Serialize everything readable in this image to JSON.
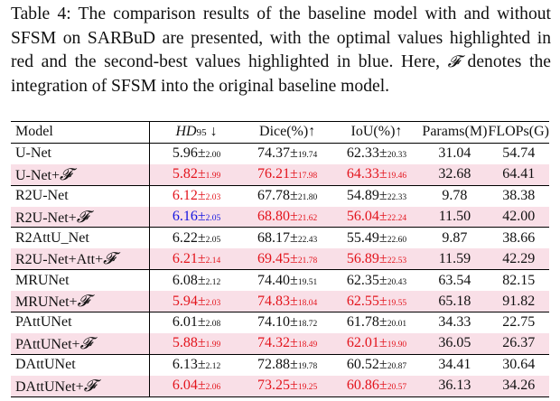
{
  "caption": {
    "part1": "Table 4: The comparison results of the baseline model with and without SFSM on SARBuD are presented, with the optimal values highlighted in red and the second-best values highlighted in blue. Here, ",
    "symbol": "𝓕",
    "part2": " denotes the integration of SFSM into the original baseline model."
  },
  "header": {
    "model": "Model",
    "hd": "HD",
    "hd_sub": "95",
    "hd_arrow": " ↓",
    "dice": "Dice(%)↑",
    "iou": "IoU(%)↑",
    "params": "Params(M)",
    "flops": "FLOPs(G)"
  },
  "groups": [
    {
      "rows": [
        {
          "model": "U-Net",
          "hd": "5.96",
          "hd_pm": "±",
          "hd_std": "2.00",
          "hd_color": "",
          "dice": "74.37",
          "dice_pm": "±",
          "dice_std": "19.74",
          "dice_color": "",
          "iou": "62.33",
          "iou_pm": "±",
          "iou_std": "20.33",
          "iou_color": "",
          "params": "31.04",
          "flops": "54.74",
          "highlight": false
        },
        {
          "model": "U-Net+",
          "suffix": "𝓕",
          "hd": "5.82",
          "hd_pm": "±",
          "hd_std": "1.99",
          "hd_color": "red",
          "dice": "76.21",
          "dice_pm": "±",
          "dice_std": "17.98",
          "dice_color": "red",
          "iou": "64.33",
          "iou_pm": "±",
          "iou_std": "19.46",
          "iou_color": "red",
          "params": "32.68",
          "flops": "64.41",
          "highlight": true
        }
      ]
    },
    {
      "rows": [
        {
          "model": "R2U-Net",
          "hd": "6.12",
          "hd_pm": "±",
          "hd_std": "2.03",
          "hd_color": "red",
          "dice": "67.78",
          "dice_pm": "±",
          "dice_std": "21.80",
          "dice_color": "",
          "iou": "54.89",
          "iou_pm": "±",
          "iou_std": "22.33",
          "iou_color": "",
          "params": "9.78",
          "flops": "38.38",
          "highlight": false
        },
        {
          "model": "R2U-Net+",
          "suffix": "𝓕",
          "hd": "6.16",
          "hd_pm": "±",
          "hd_std": "2.05",
          "hd_color": "blue",
          "dice": "68.80",
          "dice_pm": "±",
          "dice_std": "21.62",
          "dice_color": "red",
          "iou": "56.04",
          "iou_pm": "±",
          "iou_std": "22.24",
          "iou_color": "red",
          "params": "11.50",
          "flops": "42.00",
          "highlight": true
        }
      ]
    },
    {
      "rows": [
        {
          "model": "R2AttU_Net",
          "hd": "6.22",
          "hd_pm": "±",
          "hd_std": "2.05",
          "hd_color": "",
          "dice": "68.17",
          "dice_pm": "±",
          "dice_std": "22.43",
          "dice_color": "",
          "iou": "55.49",
          "iou_pm": "±",
          "iou_std": "22.60",
          "iou_color": "",
          "params": "9.87",
          "flops": "38.66",
          "highlight": false
        },
        {
          "model": "R2U-Net+Att+",
          "suffix": "𝓕",
          "hd": "6.21",
          "hd_pm": "±",
          "hd_std": "2.14",
          "hd_color": "red",
          "dice": "69.45",
          "dice_pm": "±",
          "dice_std": "21.78",
          "dice_color": "red",
          "iou": "56.89",
          "iou_pm": "±",
          "iou_std": "22.53",
          "iou_color": "red",
          "params": "11.59",
          "flops": "42.29",
          "highlight": true
        }
      ]
    },
    {
      "rows": [
        {
          "model": "MRUNet",
          "hd": "6.08",
          "hd_pm": "±",
          "hd_std": "2.12",
          "hd_color": "",
          "dice": "74.40",
          "dice_pm": "±",
          "dice_std": "19.51",
          "dice_color": "",
          "iou": "62.35",
          "iou_pm": "±",
          "iou_std": "20.43",
          "iou_color": "",
          "params": "63.54",
          "flops": "82.15",
          "highlight": false
        },
        {
          "model": "MRUNet+",
          "suffix": "𝓕",
          "hd": "5.94",
          "hd_pm": "±",
          "hd_std": "2.03",
          "hd_color": "red",
          "dice": "74.83",
          "dice_pm": "±",
          "dice_std": "18.04",
          "dice_color": "red",
          "iou": "62.55",
          "iou_pm": "±",
          "iou_std": "19.55",
          "iou_color": "red",
          "params": "65.18",
          "flops": "91.82",
          "highlight": true
        }
      ]
    },
    {
      "rows": [
        {
          "model": "PAttUNet",
          "hd": "6.01",
          "hd_pm": "±",
          "hd_std": "2.08",
          "hd_color": "",
          "dice": "74.10",
          "dice_pm": "±",
          "dice_std": "18.72",
          "dice_color": "",
          "iou": "61.78",
          "iou_pm": "±",
          "iou_std": "20.01",
          "iou_color": "",
          "params": "34.33",
          "flops": "22.75",
          "highlight": false
        },
        {
          "model": "PAttUNet+",
          "suffix": "𝓕",
          "hd": "5.88",
          "hd_pm": "±",
          "hd_std": "1.99",
          "hd_color": "red",
          "dice": "74.32",
          "dice_pm": "±",
          "dice_std": "18.49",
          "dice_color": "red",
          "iou": "62.01",
          "iou_pm": "±",
          "iou_std": "19.90",
          "iou_color": "red",
          "params": "36.05",
          "flops": "26.37",
          "highlight": true
        }
      ]
    },
    {
      "rows": [
        {
          "model": "DAttUNet",
          "hd": "6.13",
          "hd_pm": "±",
          "hd_std": "2.12",
          "hd_color": "",
          "dice": "72.88",
          "dice_pm": "±",
          "dice_std": "19.78",
          "dice_color": "",
          "iou": "60.52",
          "iou_pm": "±",
          "iou_std": "20.87",
          "iou_color": "",
          "params": "34.41",
          "flops": "30.64",
          "highlight": false
        },
        {
          "model": "DAttUNet+",
          "suffix": "𝓕",
          "hd": "6.04",
          "hd_pm": "±",
          "hd_std": "2.06",
          "hd_color": "red",
          "dice": "73.25",
          "dice_pm": "±",
          "dice_std": "19.25",
          "dice_color": "red",
          "iou": "60.86",
          "iou_pm": "±",
          "iou_std": "20.57",
          "iou_color": "red",
          "params": "36.13",
          "flops": "34.26",
          "highlight": true
        }
      ]
    }
  ],
  "colors": {
    "best": "#e3141c",
    "second": "#1414e0",
    "highlight_row": "#f9dfe7"
  }
}
